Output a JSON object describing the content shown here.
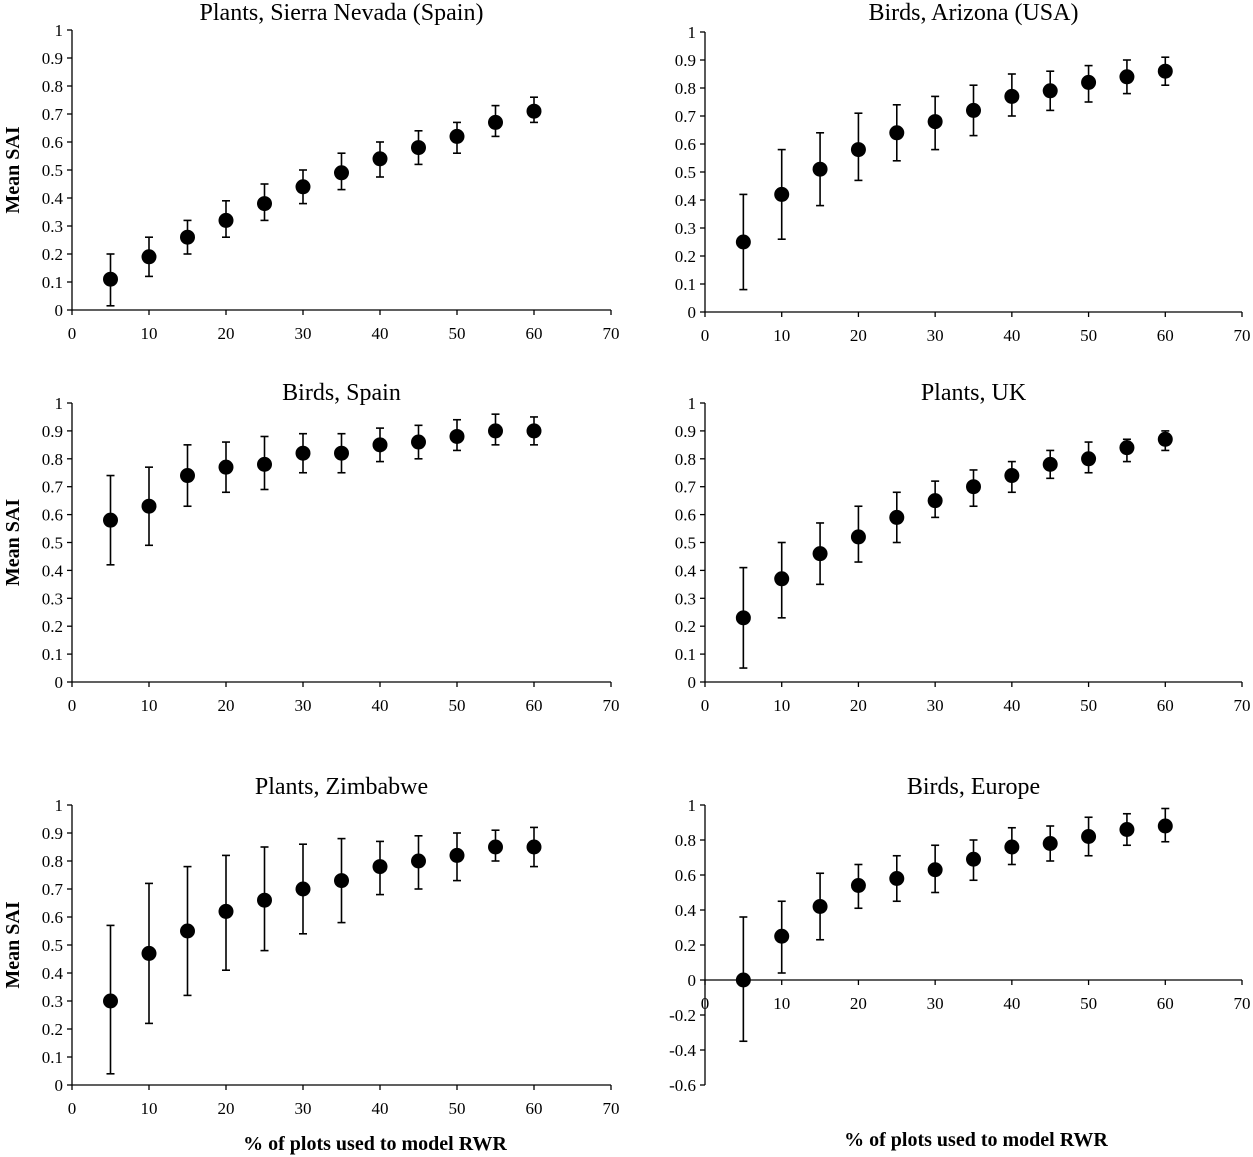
{
  "x_axis_label": "% of plots used to model RWR",
  "chart_data": [
    {
      "type": "scatter",
      "title": "Plants, Sierra Nevada (Spain)",
      "xlabel": "",
      "ylabel": "Mean SAI",
      "xlim": [
        0,
        70
      ],
      "ylim": [
        0,
        1
      ],
      "x_ticks": [
        "0",
        "10",
        "20",
        "30",
        "40",
        "50",
        "60",
        "70"
      ],
      "y_ticks": [
        "0",
        "0.1",
        "0.2",
        "0.3",
        "0.4",
        "0.5",
        "0.6",
        "0.7",
        "0.8",
        "0.9",
        "1"
      ],
      "x": [
        5,
        10,
        15,
        20,
        25,
        30,
        35,
        40,
        45,
        50,
        55,
        60
      ],
      "y": [
        0.11,
        0.19,
        0.26,
        0.32,
        0.38,
        0.44,
        0.49,
        0.54,
        0.58,
        0.62,
        0.67,
        0.71
      ],
      "err_low": [
        0.015,
        0.12,
        0.2,
        0.26,
        0.32,
        0.38,
        0.43,
        0.475,
        0.52,
        0.56,
        0.62,
        0.67
      ],
      "err_high": [
        0.2,
        0.26,
        0.32,
        0.39,
        0.45,
        0.5,
        0.56,
        0.6,
        0.64,
        0.67,
        0.73,
        0.76
      ],
      "grid": false,
      "legend": "none"
    },
    {
      "type": "scatter",
      "title": "Birds, Arizona (USA)",
      "xlabel": "",
      "ylabel": "",
      "xlim": [
        0,
        70
      ],
      "ylim": [
        0,
        1
      ],
      "x_ticks": [
        "0",
        "10",
        "20",
        "30",
        "40",
        "50",
        "60",
        "70"
      ],
      "y_ticks": [
        "0",
        "0.1",
        "0.2",
        "0.3",
        "0.4",
        "0.5",
        "0.6",
        "0.7",
        "0.8",
        "0.9",
        "1"
      ],
      "x": [
        5,
        10,
        15,
        20,
        25,
        30,
        35,
        40,
        45,
        50,
        55,
        60
      ],
      "y": [
        0.25,
        0.42,
        0.51,
        0.58,
        0.64,
        0.68,
        0.72,
        0.77,
        0.79,
        0.82,
        0.84,
        0.86
      ],
      "err_low": [
        0.08,
        0.26,
        0.38,
        0.47,
        0.54,
        0.58,
        0.63,
        0.7,
        0.72,
        0.75,
        0.78,
        0.81
      ],
      "err_high": [
        0.42,
        0.58,
        0.64,
        0.71,
        0.74,
        0.77,
        0.81,
        0.85,
        0.86,
        0.88,
        0.9,
        0.91
      ],
      "grid": false,
      "legend": "none"
    },
    {
      "type": "scatter",
      "title": "Birds, Spain",
      "xlabel": "",
      "ylabel": "Mean SAI",
      "xlim": [
        0,
        70
      ],
      "ylim": [
        0,
        1
      ],
      "x_ticks": [
        "0",
        "10",
        "20",
        "30",
        "40",
        "50",
        "60",
        "70"
      ],
      "y_ticks": [
        "0",
        "0.1",
        "0.2",
        "0.3",
        "0.4",
        "0.5",
        "0.6",
        "0.7",
        "0.8",
        "0.9",
        "1"
      ],
      "x": [
        5,
        10,
        15,
        20,
        25,
        30,
        35,
        40,
        45,
        50,
        55,
        60
      ],
      "y": [
        0.58,
        0.63,
        0.74,
        0.77,
        0.78,
        0.82,
        0.82,
        0.85,
        0.86,
        0.88,
        0.9,
        0.9
      ],
      "err_low": [
        0.42,
        0.49,
        0.63,
        0.68,
        0.69,
        0.75,
        0.75,
        0.79,
        0.8,
        0.83,
        0.85,
        0.85
      ],
      "err_high": [
        0.74,
        0.77,
        0.85,
        0.86,
        0.88,
        0.89,
        0.89,
        0.91,
        0.92,
        0.94,
        0.96,
        0.95
      ],
      "grid": false,
      "legend": "none"
    },
    {
      "type": "scatter",
      "title": "Plants, UK",
      "xlabel": "",
      "ylabel": "",
      "xlim": [
        0,
        70
      ],
      "ylim": [
        0,
        1
      ],
      "x_ticks": [
        "0",
        "10",
        "20",
        "30",
        "40",
        "50",
        "60",
        "70"
      ],
      "y_ticks": [
        "0",
        "0.1",
        "0.2",
        "0.3",
        "0.4",
        "0.5",
        "0.6",
        "0.7",
        "0.8",
        "0.9",
        "1"
      ],
      "x": [
        5,
        10,
        15,
        20,
        25,
        30,
        35,
        40,
        45,
        50,
        55,
        60
      ],
      "y": [
        0.23,
        0.37,
        0.46,
        0.52,
        0.59,
        0.65,
        0.7,
        0.74,
        0.78,
        0.8,
        0.84,
        0.87
      ],
      "err_low": [
        0.05,
        0.23,
        0.35,
        0.43,
        0.5,
        0.59,
        0.63,
        0.68,
        0.73,
        0.75,
        0.79,
        0.83
      ],
      "err_high": [
        0.41,
        0.5,
        0.57,
        0.63,
        0.68,
        0.72,
        0.76,
        0.79,
        0.83,
        0.86,
        0.87,
        0.9
      ],
      "grid": false,
      "legend": "none"
    },
    {
      "type": "scatter",
      "title": "Plants, Zimbabwe",
      "xlabel": "% of plots used to model RWR",
      "ylabel": "Mean SAI",
      "xlim": [
        0,
        70
      ],
      "ylim": [
        0,
        1
      ],
      "x_ticks": [
        "0",
        "10",
        "20",
        "30",
        "40",
        "50",
        "60",
        "70"
      ],
      "y_ticks": [
        "0",
        "0.1",
        "0.2",
        "0.3",
        "0.4",
        "0.5",
        "0.6",
        "0.7",
        "0.8",
        "0.9",
        "1"
      ],
      "x": [
        5,
        10,
        15,
        20,
        25,
        30,
        35,
        40,
        45,
        50,
        55,
        60
      ],
      "y": [
        0.3,
        0.47,
        0.55,
        0.62,
        0.66,
        0.7,
        0.73,
        0.78,
        0.8,
        0.82,
        0.85,
        0.85
      ],
      "err_low": [
        0.04,
        0.22,
        0.32,
        0.41,
        0.48,
        0.54,
        0.58,
        0.68,
        0.7,
        0.73,
        0.8,
        0.78
      ],
      "err_high": [
        0.57,
        0.72,
        0.78,
        0.82,
        0.85,
        0.86,
        0.88,
        0.87,
        0.89,
        0.9,
        0.91,
        0.92
      ],
      "grid": false,
      "legend": "none"
    },
    {
      "type": "scatter",
      "title": "Birds, Europe",
      "xlabel": "% of plots used to model RWR",
      "ylabel": "",
      "xlim": [
        0,
        70
      ],
      "ylim": [
        -0.6,
        1
      ],
      "x_ticks": [
        "0",
        "10",
        "20",
        "30",
        "40",
        "50",
        "60",
        "70"
      ],
      "y_ticks": [
        "-0.6",
        "-0.4",
        "-0.2",
        "0",
        "0.2",
        "0.4",
        "0.6",
        "0.8",
        "1"
      ],
      "x": [
        5,
        10,
        15,
        20,
        25,
        30,
        35,
        40,
        45,
        50,
        55,
        60
      ],
      "y": [
        0.0,
        0.25,
        0.42,
        0.54,
        0.58,
        0.63,
        0.69,
        0.76,
        0.78,
        0.82,
        0.86,
        0.88
      ],
      "err_low": [
        -0.35,
        0.04,
        0.23,
        0.41,
        0.45,
        0.5,
        0.57,
        0.66,
        0.68,
        0.71,
        0.77,
        0.79
      ],
      "err_high": [
        0.36,
        0.45,
        0.61,
        0.66,
        0.71,
        0.77,
        0.8,
        0.87,
        0.88,
        0.93,
        0.95,
        0.98
      ],
      "grid": false,
      "legend": "none"
    }
  ]
}
